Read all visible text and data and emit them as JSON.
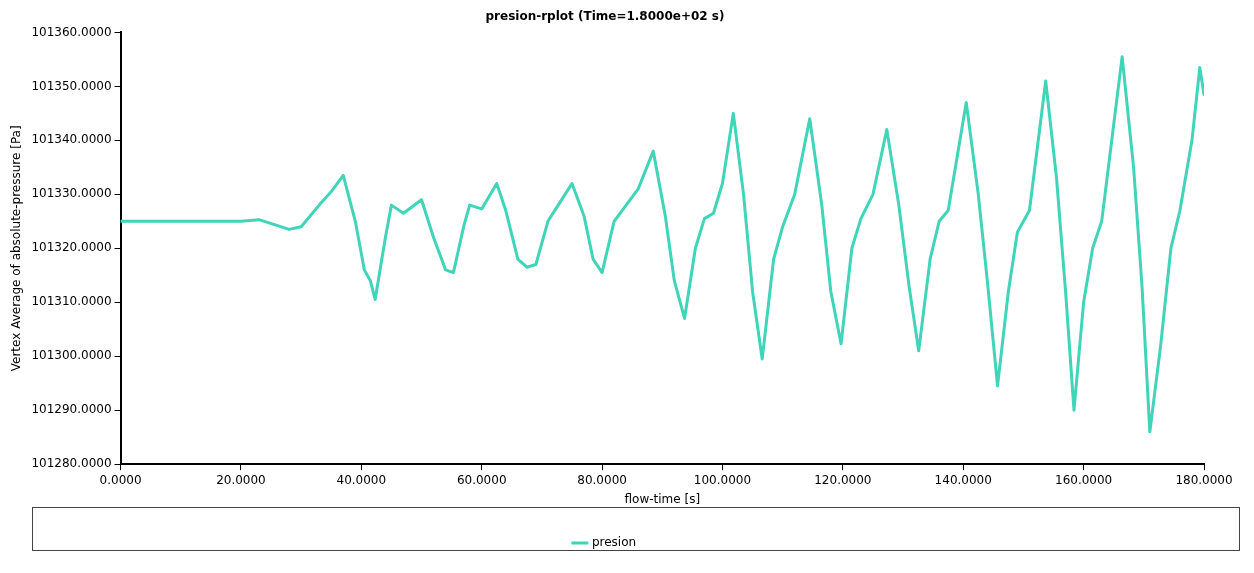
{
  "chart_data": {
    "type": "line",
    "title": "presion-rplot (Time=1.8000e+02 s)",
    "xlabel": "flow-time [s]",
    "ylabel": "Vertex Average of absolute-pressure [Pa]",
    "legend": "bottom",
    "x": [
      0,
      10,
      20,
      23,
      28,
      30,
      33,
      35,
      37,
      39,
      40.5,
      41.5,
      42.3,
      44,
      45,
      47,
      50,
      52,
      54,
      55.3,
      57,
      58,
      60,
      62.5,
      64,
      66,
      67.5,
      69,
      71,
      73,
      75,
      77,
      78.5,
      80,
      82,
      84,
      86,
      88.5,
      90.5,
      92,
      93.7,
      95.5,
      97,
      98.5,
      100,
      101.8,
      103.5,
      105,
      106.6,
      108.5,
      110,
      112,
      114.5,
      116.5,
      118,
      119.7,
      121.5,
      123,
      125,
      127.3,
      129.3,
      131,
      132.6,
      134.5,
      136,
      137.5,
      140.5,
      142.5,
      144,
      145.7,
      147.5,
      149,
      151,
      153.7,
      155.5,
      157,
      158.4,
      160,
      161.5,
      163,
      166.4,
      168.3,
      169.7,
      171,
      172.8,
      174.5,
      176,
      178,
      179.3,
      180
    ],
    "series": [
      {
        "name": "presion",
        "color": "#40d4b8",
        "values": [
          101325,
          101325,
          101325,
          101325.3,
          101323.5,
          101324,
          101328,
          101330.5,
          101333.5,
          101325,
          101316,
          101314,
          101310.5,
          101322,
          101328,
          101326.5,
          101329,
          101322,
          101316,
          101315.5,
          101324,
          101328,
          101327.3,
          101332,
          101327,
          101318,
          101316.5,
          101317,
          101325,
          101328.5,
          101332,
          101326,
          101318,
          101315.5,
          101325,
          101328,
          101331,
          101338,
          101326,
          101314,
          101307,
          101320,
          101325.5,
          101326.5,
          101332,
          101345,
          101330,
          101312,
          101299.5,
          101318,
          101324,
          101330,
          101344,
          101328,
          101312,
          101302.3,
          101320,
          101325.5,
          101330,
          101342,
          101328,
          101313,
          101301,
          101318,
          101325,
          101327,
          101347,
          101330,
          101314,
          101294.5,
          101312,
          101323,
          101327,
          101351,
          101333,
          101312,
          101290,
          101310,
          101320,
          101325,
          101355.5,
          101335,
          101313,
          101286,
          101302,
          101320,
          101327,
          101340,
          101353.5,
          101348.5
        ]
      }
    ],
    "xlim": [
      0,
      180
    ],
    "xticks": [
      {
        "value": 0,
        "label": "0.0000"
      },
      {
        "value": 20,
        "label": "20.0000"
      },
      {
        "value": 40,
        "label": "40.0000"
      },
      {
        "value": 60,
        "label": "60.0000"
      },
      {
        "value": 80,
        "label": "80.0000"
      },
      {
        "value": 100,
        "label": "100.0000"
      },
      {
        "value": 120,
        "label": "120.0000"
      },
      {
        "value": 140,
        "label": "140.0000"
      },
      {
        "value": 160,
        "label": "160.0000"
      },
      {
        "value": 180,
        "label": "180.0000"
      }
    ],
    "ylim": [
      101280,
      101360
    ],
    "yticks": [
      {
        "value": 101280,
        "label": "101280.0000"
      },
      {
        "value": 101290,
        "label": "101290.0000"
      },
      {
        "value": 101300,
        "label": "101300.0000"
      },
      {
        "value": 101310,
        "label": "101310.0000"
      },
      {
        "value": 101320,
        "label": "101320.0000"
      },
      {
        "value": 101330,
        "label": "101330.0000"
      },
      {
        "value": 101340,
        "label": "101340.0000"
      },
      {
        "value": 101350,
        "label": "101350.0000"
      },
      {
        "value": 101360,
        "label": "101360.0000"
      }
    ]
  }
}
